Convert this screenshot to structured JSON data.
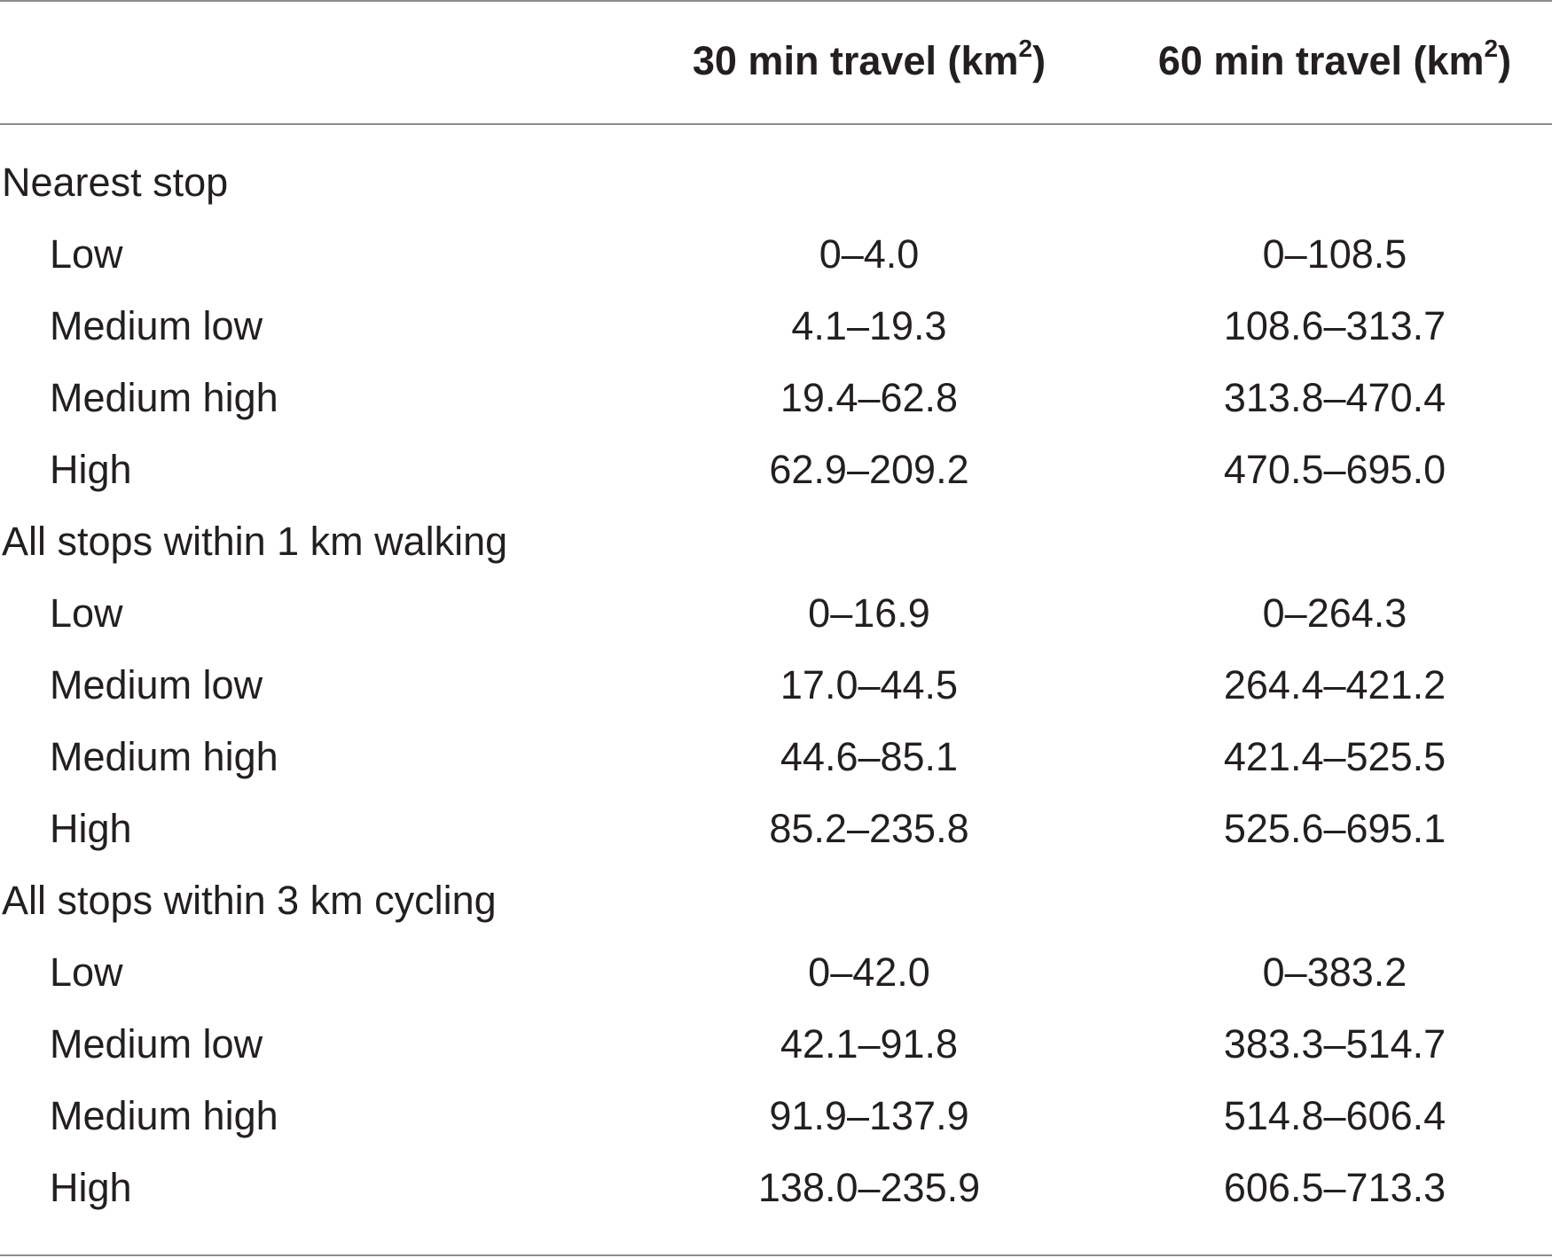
{
  "header": {
    "col1_prefix": "30 min travel (km",
    "col1_sup": "2",
    "col1_suffix": ")",
    "col2_prefix": "60 min travel (km",
    "col2_sup": "2",
    "col2_suffix": ")"
  },
  "rows": [
    {
      "label": "Nearest stop",
      "v1": "",
      "v2": ""
    },
    {
      "label": "Low",
      "v1": "0–4.0",
      "v2": "0–108.5"
    },
    {
      "label": "Medium low",
      "v1": "4.1–19.3",
      "v2": "108.6–313.7"
    },
    {
      "label": "Medium high",
      "v1": "19.4–62.8",
      "v2": "313.8–470.4"
    },
    {
      "label": "High",
      "v1": "62.9–209.2",
      "v2": "470.5–695.0"
    },
    {
      "label": "All stops within 1 km walking",
      "v1": "",
      "v2": ""
    },
    {
      "label": "Low",
      "v1": "0–16.9",
      "v2": "0–264.3"
    },
    {
      "label": "Medium low",
      "v1": "17.0–44.5",
      "v2": "264.4–421.2"
    },
    {
      "label": "Medium high",
      "v1": "44.6–85.1",
      "v2": "421.4–525.5"
    },
    {
      "label": "High",
      "v1": "85.2–235.8",
      "v2": "525.6–695.1"
    },
    {
      "label": "All stops within 3 km cycling",
      "v1": "",
      "v2": ""
    },
    {
      "label": "Low",
      "v1": "0–42.0",
      "v2": "0–383.2"
    },
    {
      "label": "Medium low",
      "v1": "42.1–91.8",
      "v2": "383.3–514.7"
    },
    {
      "label": "Medium high",
      "v1": "91.9–137.9",
      "v2": "514.8–606.4"
    },
    {
      "label": "High",
      "v1": "138.0–235.9",
      "v2": "606.5–713.3"
    }
  ]
}
